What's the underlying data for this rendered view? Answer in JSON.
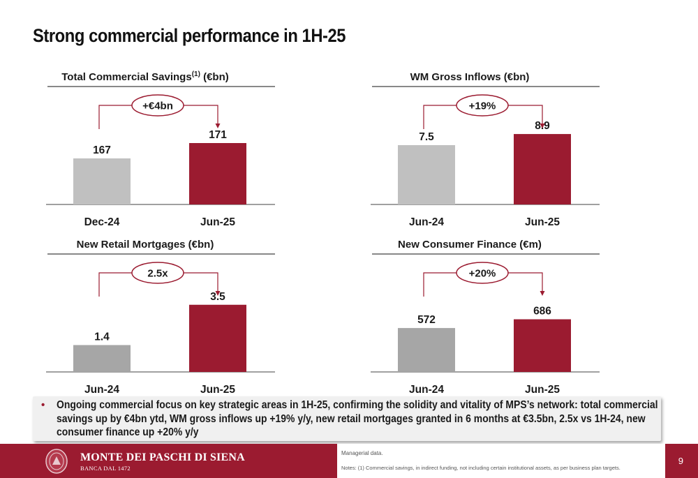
{
  "page": {
    "title": "Strong commercial performance in 1H-25",
    "bullet": "Ongoing commercial focus on key strategic areas in 1H-25, confirming the solidity and vitality of MPS’s network: total commercial savings up by €4bn ytd, WM gross inflows up +19% y/y, new retail mortgages granted in 6 months at €3.5bn, 2.5x vs 1H-24, new consumer finance up +20% y/y",
    "bullet_marker": "•"
  },
  "footer": {
    "bank_name": "MONTE DEI PASCHI DI SIENA",
    "bank_sub": "BANCA DAL 1472",
    "note1": "Managerial data.",
    "note2": "Notes: (1) Commercial savings, in indirect funding, not including certain institutional assets, as per business plan targets.",
    "page_number": "9"
  },
  "colors": {
    "accent": "#9b1b30",
    "prior_bar": "#c0c0c0",
    "prior_bar_dark": "#a6a6a6",
    "axis": "#404040"
  },
  "chart_data": [
    {
      "type": "bar",
      "title": "Total Commercial Savings",
      "title_superscript": "(1)",
      "title_suffix": " (€bn)",
      "categories": [
        "Dec-24",
        "Jun-25"
      ],
      "values": [
        167,
        171
      ],
      "value_labels": [
        "167",
        "171"
      ],
      "change_label": "+€4bn",
      "ylim": [
        155,
        175
      ],
      "bar_colors": [
        "#c0c0c0",
        "#9b1b30"
      ]
    },
    {
      "type": "bar",
      "title": "WM Gross Inflows (€bn)",
      "categories": [
        "Jun-24",
        "Jun-25"
      ],
      "values": [
        7.5,
        8.9
      ],
      "value_labels": [
        "7.5",
        "8.9"
      ],
      "change_label": "+19%",
      "ylim": [
        0,
        9.7
      ],
      "bar_colors": [
        "#c0c0c0",
        "#9b1b30"
      ]
    },
    {
      "type": "bar",
      "title": "New Retail Mortgages (€bn)",
      "categories": [
        "Jun-24",
        "Jun-25"
      ],
      "values": [
        1.4,
        3.5
      ],
      "value_labels": [
        "1.4",
        "3.5"
      ],
      "change_label": "2.5x",
      "ylim": [
        0,
        4.0
      ],
      "bar_colors": [
        "#a6a6a6",
        "#9b1b30"
      ]
    },
    {
      "type": "bar",
      "title": "New Consumer Finance  (€m)",
      "categories": [
        "Jun-24",
        "Jun-25"
      ],
      "values": [
        572,
        686
      ],
      "value_labels": [
        "572",
        "686"
      ],
      "change_label": "+20%",
      "ylim": [
        0,
        1000
      ],
      "bar_colors": [
        "#a6a6a6",
        "#9b1b30"
      ]
    }
  ]
}
